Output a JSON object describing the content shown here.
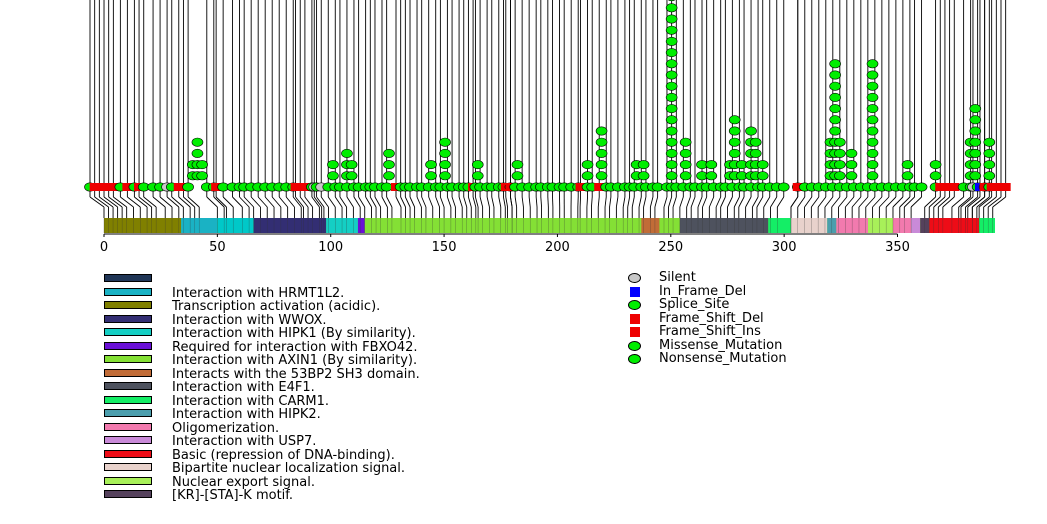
{
  "chart_data": {
    "type": "lollipop",
    "protein_length": 393,
    "x_axis": {
      "range": [
        0,
        393
      ],
      "ticks": [
        0,
        50,
        100,
        150,
        200,
        250,
        300,
        350
      ]
    },
    "mutation_types": [
      {
        "name": "Silent",
        "color": "#c8c8c8",
        "shape": "circle"
      },
      {
        "name": "In_Frame_Del",
        "color": "#0000ff",
        "shape": "square"
      },
      {
        "name": "Splice_Site",
        "color": "#00ee00",
        "shape": "circle"
      },
      {
        "name": "Frame_Shift_Del",
        "color": "#ee0000",
        "shape": "square"
      },
      {
        "name": "Frame_Shift_Ins",
        "color": "#ee0000",
        "shape": "square"
      },
      {
        "name": "Missense_Mutation",
        "color": "#00ee00",
        "shape": "circle"
      },
      {
        "name": "Nonsense_Mutation",
        "color": "#00ee00",
        "shape": "circle"
      }
    ],
    "mutation_stacks": [
      {
        "position": 44,
        "count": 2
      },
      {
        "position": 46,
        "count": 4
      },
      {
        "position": 48,
        "count": 2
      },
      {
        "position": 104,
        "count": 2
      },
      {
        "position": 110,
        "count": 3
      },
      {
        "position": 112,
        "count": 2
      },
      {
        "position": 128,
        "count": 3
      },
      {
        "position": 146,
        "count": 2
      },
      {
        "position": 152,
        "count": 4
      },
      {
        "position": 166,
        "count": 2
      },
      {
        "position": 183,
        "count": 2
      },
      {
        "position": 213,
        "count": 2
      },
      {
        "position": 219,
        "count": 5
      },
      {
        "position": 234,
        "count": 2
      },
      {
        "position": 237,
        "count": 2
      },
      {
        "position": 249,
        "count": 24
      },
      {
        "position": 255,
        "count": 4
      },
      {
        "position": 262,
        "count": 2
      },
      {
        "position": 266,
        "count": 2
      },
      {
        "position": 274,
        "count": 2
      },
      {
        "position": 276,
        "count": 6
      },
      {
        "position": 279,
        "count": 2
      },
      {
        "position": 283,
        "count": 5
      },
      {
        "position": 285,
        "count": 4
      },
      {
        "position": 288,
        "count": 2
      },
      {
        "position": 317,
        "count": 4
      },
      {
        "position": 319,
        "count": 11
      },
      {
        "position": 321,
        "count": 4
      },
      {
        "position": 326,
        "count": 3
      },
      {
        "position": 335,
        "count": 11
      },
      {
        "position": 350,
        "count": 2
      },
      {
        "position": 362,
        "count": 2
      },
      {
        "position": 377,
        "count": 4
      },
      {
        "position": 379,
        "count": 7
      },
      {
        "position": 385,
        "count": 4
      }
    ],
    "baseline": {
      "green": [
        0,
        13,
        19,
        23,
        27,
        30,
        35,
        42,
        50,
        53,
        57,
        61,
        64,
        66,
        69,
        72,
        75,
        78,
        81,
        84,
        87,
        95,
        97,
        102,
        105,
        107,
        110,
        113,
        115,
        118,
        120,
        122,
        125,
        127,
        133,
        135,
        137,
        140,
        142,
        145,
        148,
        150,
        153,
        155,
        158,
        160,
        162,
        165,
        167,
        170,
        172,
        175,
        177,
        180,
        182,
        185,
        188,
        191,
        193,
        196,
        198,
        201,
        203,
        206,
        209,
        213,
        215,
        221,
        223,
        226,
        229,
        231,
        233,
        236,
        238,
        241,
        243,
        247,
        249,
        251,
        254,
        257,
        259,
        262,
        264,
        267,
        270,
        272,
        275,
        278,
        280,
        283,
        286,
        288,
        291,
        294,
        297,
        303,
        306,
        309,
        312,
        315,
        318,
        321,
        324,
        327,
        330,
        333,
        336,
        339,
        342,
        345,
        348,
        351,
        353,
        356,
        362,
        374,
        377,
        380,
        383,
        385
      ],
      "red": [
        2,
        4,
        6,
        8,
        10,
        16,
        21,
        38,
        40,
        54,
        88,
        90,
        92,
        131,
        164,
        178,
        180,
        210,
        218,
        303,
        364,
        366,
        368,
        370,
        383,
        386,
        388,
        390,
        392
      ],
      "blue": [
        381
      ],
      "grey": [
        33,
        96,
        99,
        378
      ]
    },
    "domains": [
      {
        "name": "Transcription activation (acidic).",
        "start": 0,
        "end": 34,
        "color": "#808000"
      },
      {
        "name": "Interaction with HRMT1L2.",
        "start": 34,
        "end": 50,
        "color": "#1ab2c4"
      },
      {
        "name": "Interaction with HIPK1 (By similarity).",
        "start": 50,
        "end": 66,
        "color": "#00c8c8"
      },
      {
        "name": "Interaction with WWOX.",
        "start": 66,
        "end": 98,
        "color": "#332e73"
      },
      {
        "name": "Interaction with HIPK1 (By similarity).",
        "start": 98,
        "end": 112,
        "color": "#14cfc4"
      },
      {
        "name": "Required for interaction with FBXO42.",
        "start": 112,
        "end": 115,
        "color": "#6a10d6"
      },
      {
        "name": "Interaction with AXIN1 (By similarity).",
        "start": 115,
        "end": 237,
        "color": "#84e035"
      },
      {
        "name": "Interacts with the 53BP2 SH3 domain.",
        "start": 237,
        "end": 245,
        "color": "#c16c37"
      },
      {
        "name": "Interaction with AXIN1 (By similarity).",
        "start": 245,
        "end": 254,
        "color": "#84e035"
      },
      {
        "name": "Interaction with E4F1.",
        "start": 254,
        "end": 293,
        "color": "#4e525e"
      },
      {
        "name": "Interaction with CARM1.",
        "start": 293,
        "end": 303,
        "color": "#14ee66"
      },
      {
        "name": "Bipartite nuclear localization signal.",
        "start": 303,
        "end": 319,
        "color": "#e8d2cc"
      },
      {
        "name": "Interaction with HIPK2.",
        "start": 319,
        "end": 323,
        "color": "#4b9ead"
      },
      {
        "name": "Oligomerization.",
        "start": 323,
        "end": 337,
        "color": "#f27aae"
      },
      {
        "name": "Nuclear export signal.",
        "start": 337,
        "end": 348,
        "color": "#a8f059"
      },
      {
        "name": "Oligomerization.",
        "start": 348,
        "end": 356,
        "color": "#f27aae"
      },
      {
        "name": "Interaction with USP7.",
        "start": 356,
        "end": 360,
        "color": "#c98ad8"
      },
      {
        "name": "[KR]-[STA]-K motif.",
        "start": 360,
        "end": 364,
        "color": "#55415c"
      },
      {
        "name": "Basic (repression of DNA-binding).",
        "start": 364,
        "end": 386,
        "color": "#ee0c17"
      },
      {
        "name": "Interaction with CARM1.",
        "start": 386,
        "end": 393,
        "color": "#14ee66"
      }
    ]
  },
  "domain_legend": [
    {
      "label": "",
      "color": "#1f3556"
    },
    {
      "label": "Interaction with HRMT1L2.",
      "color": "#1ab2c4"
    },
    {
      "label": "Transcription activation (acidic).",
      "color": "#808000"
    },
    {
      "label": "Interaction with WWOX.",
      "color": "#332e73"
    },
    {
      "label": "Interaction with HIPK1 (By similarity).",
      "color": "#14cfc4"
    },
    {
      "label": "Required for interaction with FBXO42.",
      "color": "#6a10d6"
    },
    {
      "label": "Interaction with AXIN1 (By similarity).",
      "color": "#84e035"
    },
    {
      "label": "Interacts with the 53BP2 SH3 domain.",
      "color": "#c16c37"
    },
    {
      "label": "Interaction with E4F1.",
      "color": "#4e525e"
    },
    {
      "label": "Interaction with CARM1.",
      "color": "#14ee66"
    },
    {
      "label": "Interaction with HIPK2.",
      "color": "#4b9ead"
    },
    {
      "label": "Oligomerization.",
      "color": "#f27aae"
    },
    {
      "label": "Interaction with USP7.",
      "color": "#c98ad8"
    },
    {
      "label": "Basic (repression of DNA-binding).",
      "color": "#ee0c17"
    },
    {
      "label": "Bipartite nuclear localization signal.",
      "color": "#e8d2cc"
    },
    {
      "label": "Nuclear export signal.",
      "color": "#a8f059"
    },
    {
      "label": "[KR]-[STA]-K motif.",
      "color": "#55415c"
    }
  ]
}
